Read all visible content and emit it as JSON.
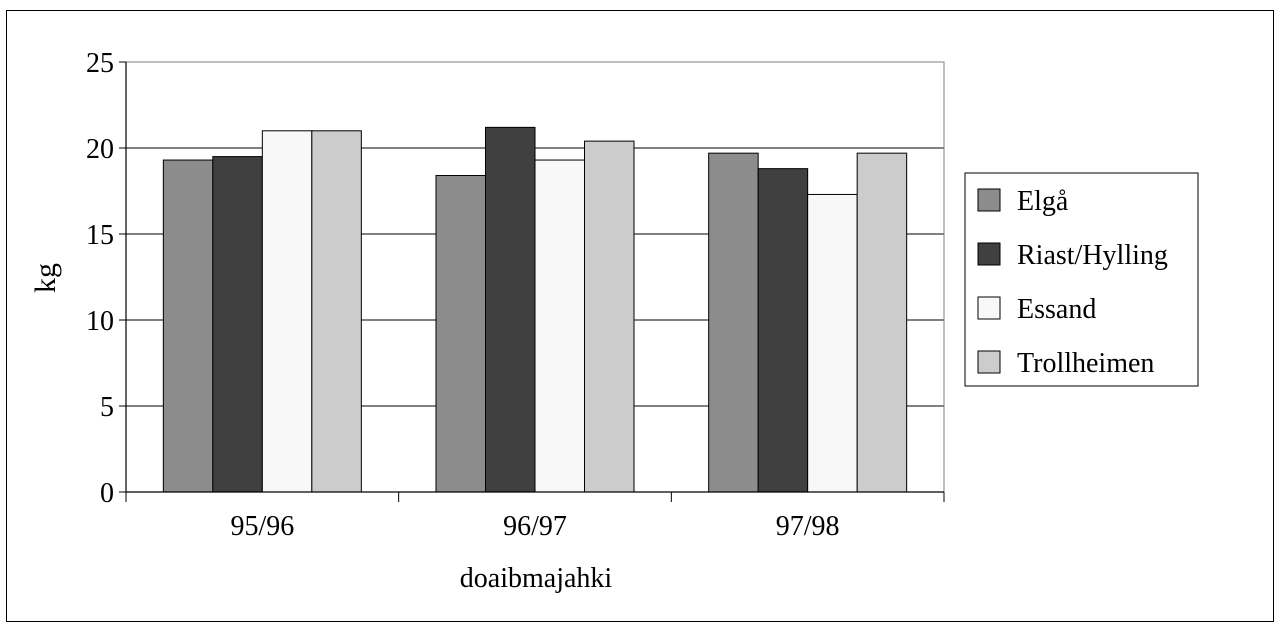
{
  "chart_data": {
    "type": "bar",
    "title": "",
    "xlabel": "doaibmajahki",
    "ylabel": "kg",
    "ylim": [
      0,
      25
    ],
    "yticks": [
      0,
      5,
      10,
      15,
      20,
      25
    ],
    "grid": true,
    "legend_position": "right",
    "categories": [
      "95/96",
      "96/97",
      "97/98"
    ],
    "series": [
      {
        "name": "Elgå",
        "color": "#8c8c8c",
        "values": [
          19.3,
          18.4,
          19.7
        ]
      },
      {
        "name": "Riast/Hylling",
        "color": "#404040",
        "values": [
          19.5,
          21.2,
          18.8
        ]
      },
      {
        "name": "Essand",
        "color": "#f8f8f8",
        "values": [
          21.0,
          19.3,
          17.3
        ]
      },
      {
        "name": "Trollheimen",
        "color": "#cccccc",
        "values": [
          21.0,
          20.4,
          19.7
        ]
      }
    ]
  }
}
